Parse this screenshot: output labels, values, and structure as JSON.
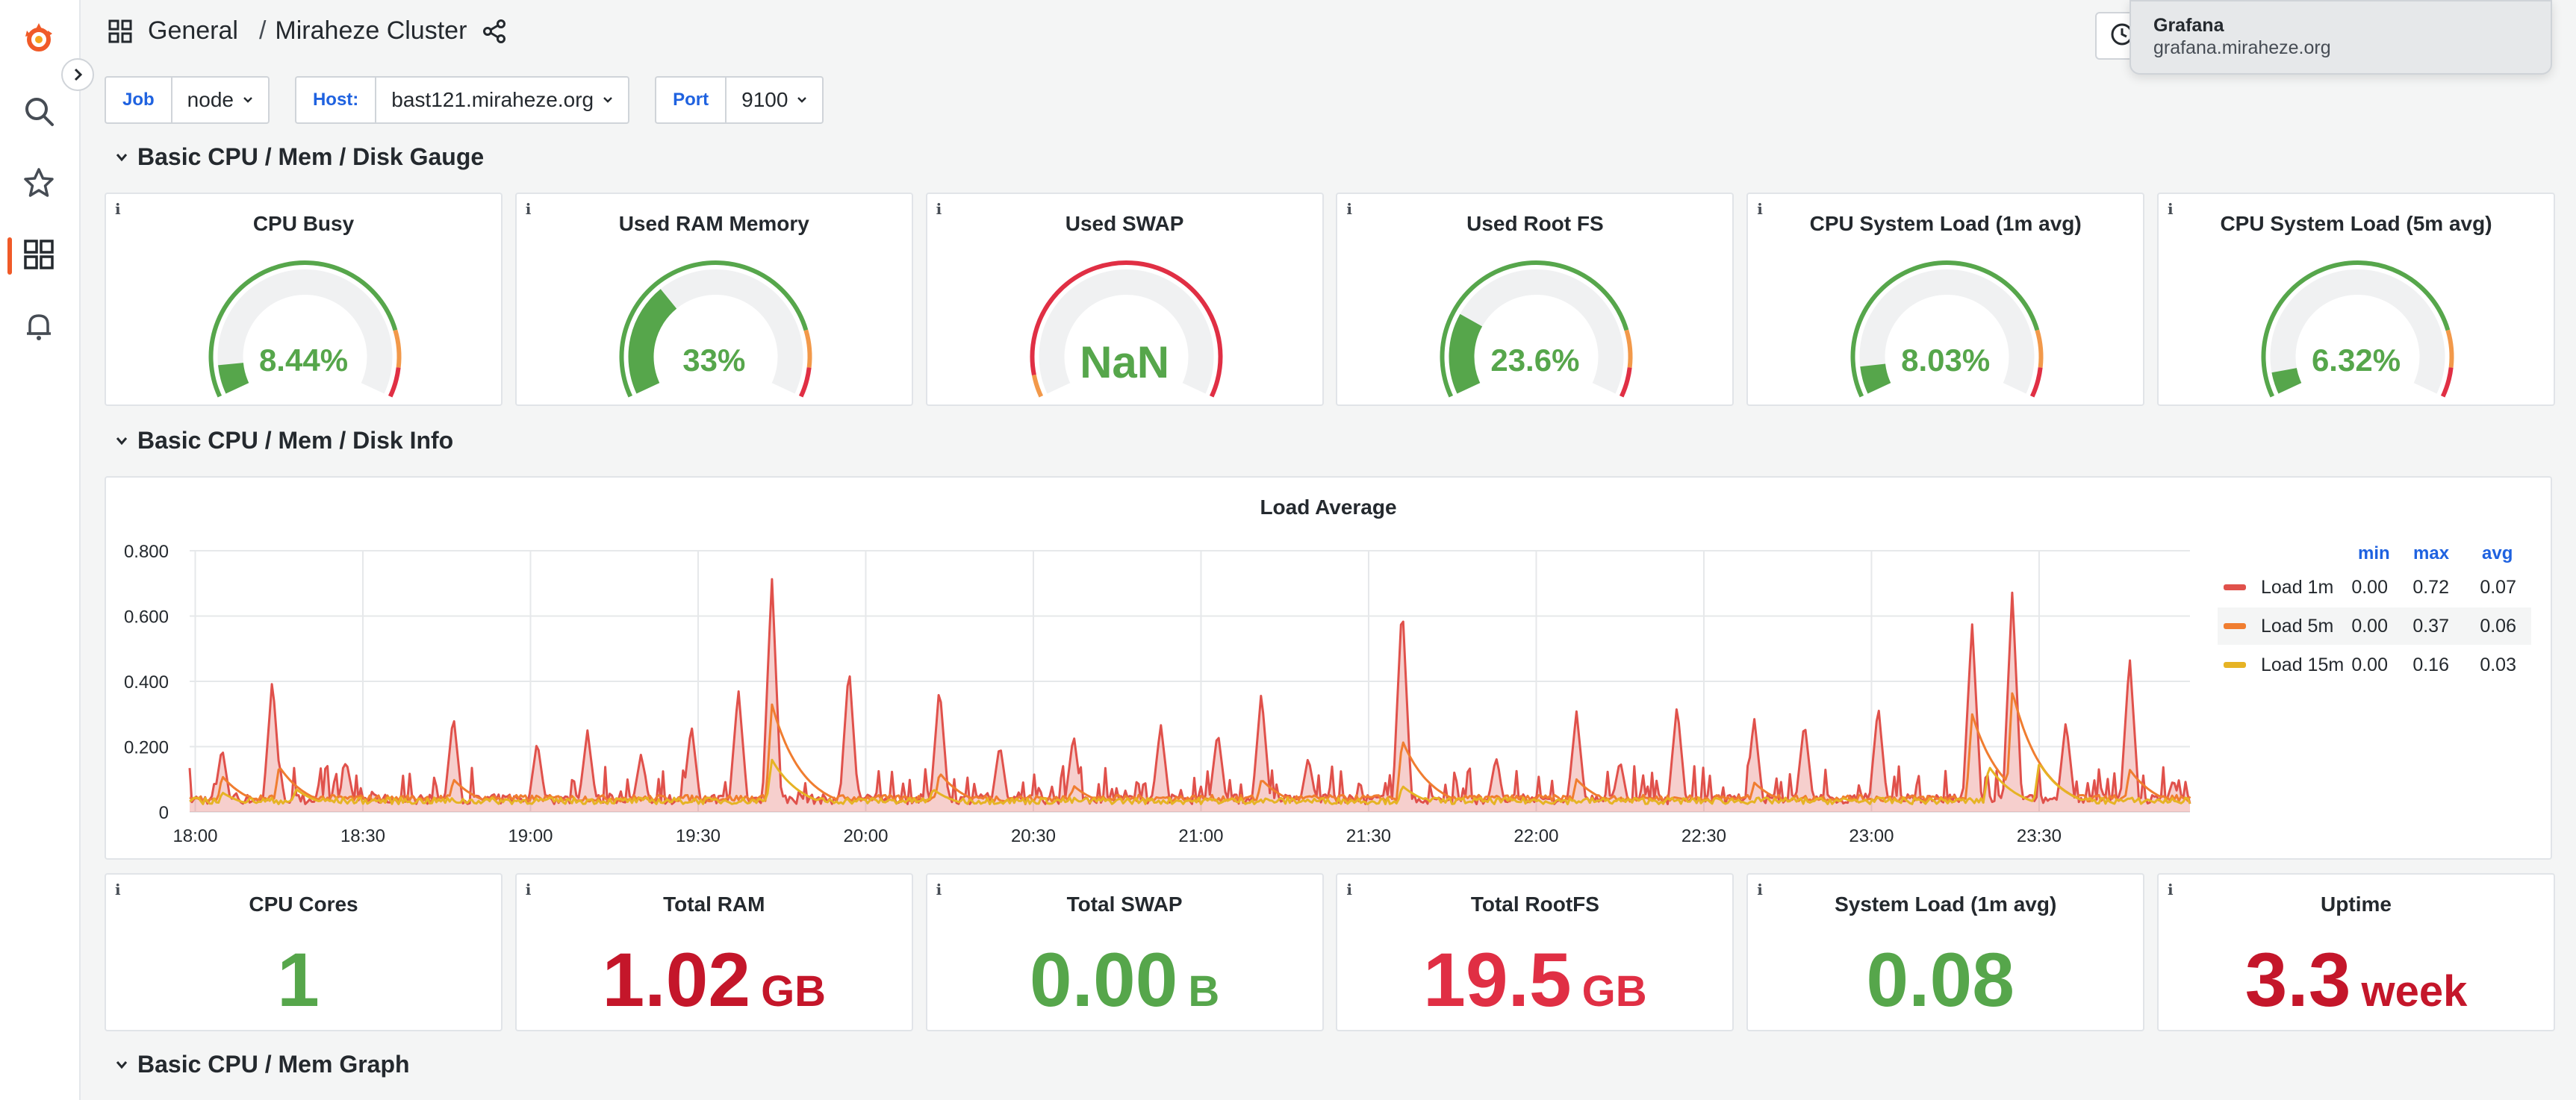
{
  "breadcrumb": {
    "folder": "General",
    "separator": "/",
    "dashboard": "Miraheze Cluster"
  },
  "tooltip": {
    "title": "Grafana",
    "subtitle": "grafana.miraheze.org"
  },
  "variables": [
    {
      "label": "Job",
      "value": "node"
    },
    {
      "label": "Host:",
      "value": "bast121.miraheze.org"
    },
    {
      "label": "Port",
      "value": "9100"
    }
  ],
  "rows": {
    "gauge": "Basic CPU / Mem / Disk Gauge",
    "info": "Basic CPU / Mem / Disk Info",
    "graph": "Basic CPU / Mem Graph"
  },
  "gauges": [
    {
      "title": "CPU Busy",
      "value": "8.44%",
      "fraction": 0.0844
    },
    {
      "title": "Used RAM Memory",
      "value": "33%",
      "fraction": 0.33
    },
    {
      "title": "Used SWAP",
      "value": "NaN",
      "fraction": 0
    },
    {
      "title": "Used Root FS",
      "value": "23.6%",
      "fraction": 0.236
    },
    {
      "title": "CPU System Load (1m avg)",
      "value": "8.03%",
      "fraction": 0.0803
    },
    {
      "title": "CPU System Load (5m avg)",
      "value": "6.32%",
      "fraction": 0.0632
    }
  ],
  "info_icon": "i",
  "stats": [
    {
      "title": "CPU Cores",
      "value": "1",
      "unit": "",
      "color": "#56a64b"
    },
    {
      "title": "Total RAM",
      "value": "1.02",
      "unit": "GB",
      "color": "#c4162a"
    },
    {
      "title": "Total SWAP",
      "value": "0.00",
      "unit": "B",
      "color": "#56a64b"
    },
    {
      "title": "Total RootFS",
      "value": "19.5",
      "unit": "GB",
      "color": "#e02f44"
    },
    {
      "title": "System Load (1m avg)",
      "value": "0.08",
      "unit": "",
      "color": "#56a64b"
    },
    {
      "title": "Uptime",
      "value": "3.3",
      "unit": "week",
      "color": "#c4162a"
    }
  ],
  "colors": {
    "green": "#56a64b",
    "red": "#e02f44",
    "orange": "#f2994a",
    "accent": "#f05a28",
    "blue": "#1f62e0"
  },
  "icons": {
    "logo": "grafana-logo-icon",
    "search": "search-icon",
    "starred": "star-icon",
    "dashboards": "dashboards-grid-icon",
    "alerting": "bell-icon",
    "share": "share-icon"
  },
  "chart_data": {
    "type": "line",
    "title": "Load Average",
    "xlabel": "",
    "ylabel": "",
    "x_ticks": [
      "18:00",
      "18:30",
      "19:00",
      "19:30",
      "20:00",
      "20:30",
      "21:00",
      "21:30",
      "22:00",
      "22:30",
      "23:00",
      "23:30"
    ],
    "y_ticks": [
      "0",
      "0.200",
      "0.400",
      "0.600",
      "0.800"
    ],
    "ylim": [
      0,
      0.8
    ],
    "x_range": [
      "17:59",
      "23:57"
    ],
    "grid": true,
    "legend_position": "right",
    "legend_headers": [
      "min",
      "max",
      "avg"
    ],
    "series": [
      {
        "name": "Load 1m",
        "color": "#e0514b",
        "fill": true,
        "min": "0.00",
        "max": "0.72",
        "avg": "0.07",
        "peaks": [
          [
            18.08,
            0.2
          ],
          [
            18.23,
            0.41
          ],
          [
            18.45,
            0.16
          ],
          [
            18.77,
            0.3
          ],
          [
            19.02,
            0.22
          ],
          [
            19.17,
            0.25
          ],
          [
            19.33,
            0.18
          ],
          [
            19.48,
            0.27
          ],
          [
            19.62,
            0.38
          ],
          [
            19.72,
            0.72
          ],
          [
            19.95,
            0.45
          ],
          [
            20.22,
            0.39
          ],
          [
            20.4,
            0.21
          ],
          [
            20.62,
            0.24
          ],
          [
            20.88,
            0.27
          ],
          [
            21.05,
            0.25
          ],
          [
            21.18,
            0.37
          ],
          [
            21.32,
            0.17
          ],
          [
            21.6,
            0.65
          ],
          [
            21.88,
            0.17
          ],
          [
            22.12,
            0.31
          ],
          [
            22.25,
            0.16
          ],
          [
            22.42,
            0.33
          ],
          [
            22.65,
            0.29
          ],
          [
            22.8,
            0.28
          ],
          [
            23.02,
            0.33
          ],
          [
            23.3,
            0.58
          ],
          [
            23.42,
            0.68
          ],
          [
            23.58,
            0.28
          ],
          [
            23.77,
            0.48
          ],
          [
            23.9,
            0.1
          ]
        ]
      },
      {
        "name": "Load 5m",
        "color": "#f07d30",
        "fill": false,
        "min": "0.00",
        "max": "0.37",
        "avg": "0.06",
        "peaks": [
          [
            18.08,
            0.11
          ],
          [
            18.25,
            0.14
          ],
          [
            18.77,
            0.1
          ],
          [
            19.72,
            0.33
          ],
          [
            20.22,
            0.12
          ],
          [
            20.62,
            0.08
          ],
          [
            21.18,
            0.1
          ],
          [
            21.6,
            0.22
          ],
          [
            22.12,
            0.1
          ],
          [
            22.65,
            0.09
          ],
          [
            23.3,
            0.3
          ],
          [
            23.42,
            0.37
          ],
          [
            23.77,
            0.13
          ]
        ]
      },
      {
        "name": "Load 15m",
        "color": "#e6b324",
        "fill": false,
        "min": "0.00",
        "max": "0.16",
        "avg": "0.03",
        "peaks": [
          [
            18.08,
            0.06
          ],
          [
            18.3,
            0.07
          ],
          [
            19.72,
            0.16
          ],
          [
            20.2,
            0.07
          ],
          [
            21.6,
            0.08
          ],
          [
            23.35,
            0.14
          ],
          [
            23.5,
            0.15
          ]
        ]
      }
    ]
  }
}
